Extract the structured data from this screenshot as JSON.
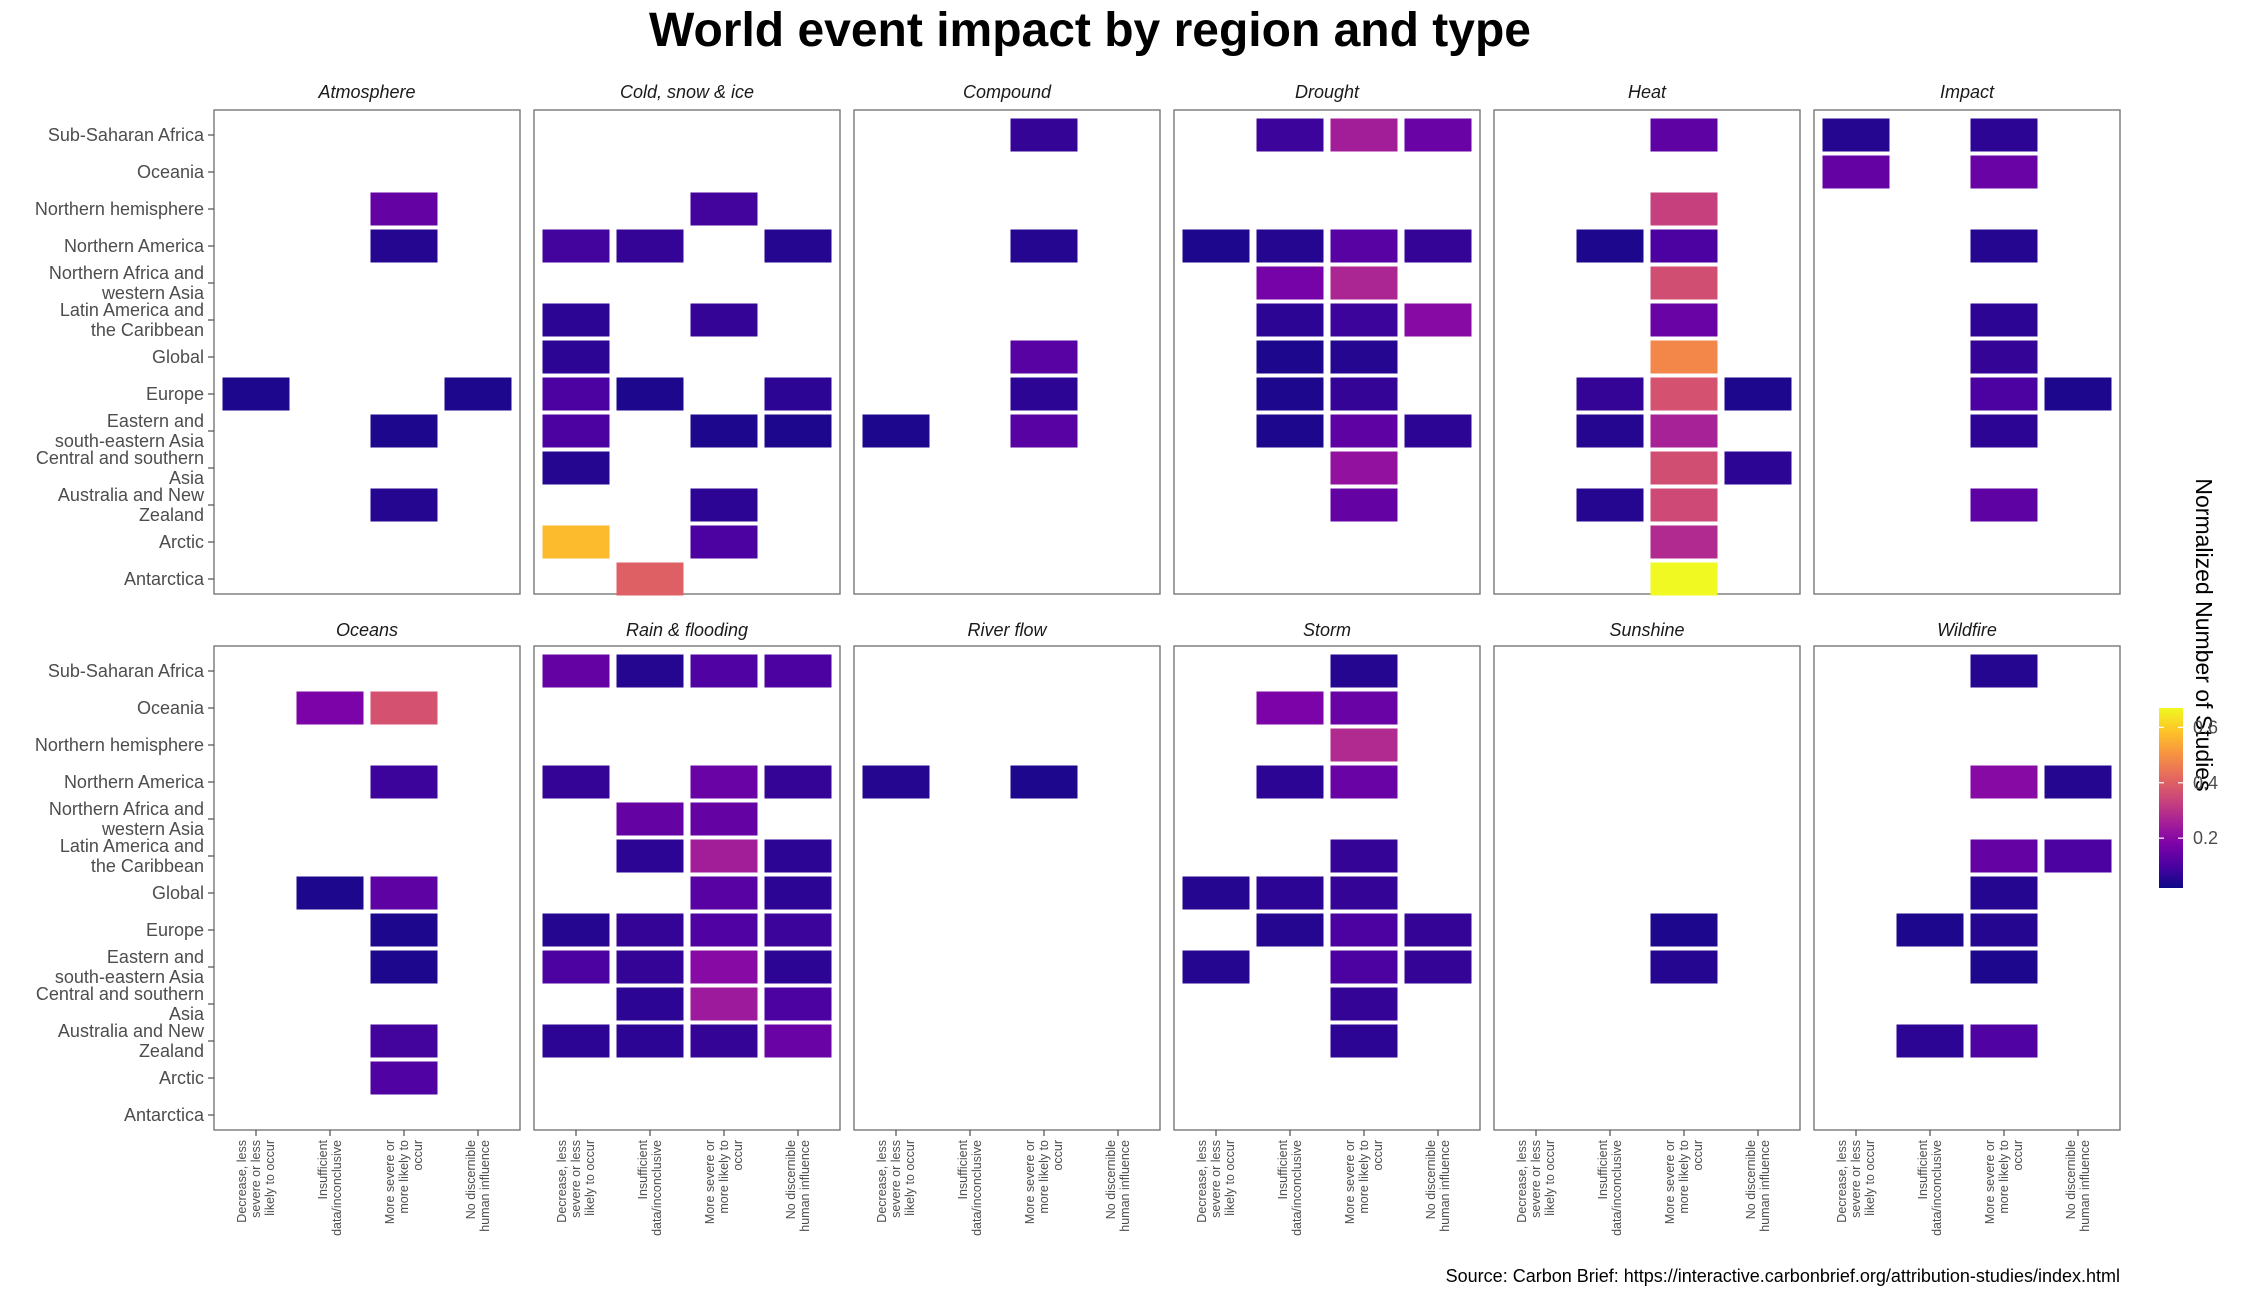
{
  "chart_data": {
    "type": "heatmap",
    "title": "World event impact by region and type",
    "caption": "Source: Carbon Brief: https://interactive.carbonbrief.org/attribution-studies/index.html",
    "legend": {
      "title": "Normalized Number of Studies",
      "ticks": [
        0.2,
        0.4,
        0.6
      ],
      "range": [
        0.02,
        0.67
      ],
      "placement": "right"
    },
    "regions": [
      "Sub-Saharan Africa",
      "Oceania",
      "Northern hemisphere",
      "Northern America",
      "Northern Africa and western Asia",
      "Latin America and the Caribbean",
      "Global",
      "Europe",
      "Eastern and south-eastern Asia",
      "Central and southern Asia",
      "Australia and New Zealand",
      "Arctic",
      "Antarctica"
    ],
    "region_labels": [
      [
        "Sub-Saharan Africa"
      ],
      [
        "Oceania"
      ],
      [
        "Northern hemisphere"
      ],
      [
        "Northern America"
      ],
      [
        "Northern Africa and",
        "western Asia"
      ],
      [
        "Latin America and",
        "the Caribbean"
      ],
      [
        "Global"
      ],
      [
        "Europe"
      ],
      [
        "Eastern and",
        "south-eastern Asia"
      ],
      [
        "Central and southern",
        "Asia"
      ],
      [
        "Australia and New",
        "Zealand"
      ],
      [
        "Arctic"
      ],
      [
        "Antarctica"
      ]
    ],
    "categories": [
      "Decrease, less severe or less likely to occur",
      "Insufficient data/inconclusive",
      "More severe or more likely to occur",
      "No discernible human influence"
    ],
    "category_labels": [
      [
        "Decrease, less",
        "severe or less",
        "likely to occur"
      ],
      [
        "Insufficient",
        "data/inconclusive"
      ],
      [
        "More severe or",
        "more likely to",
        "occur"
      ],
      [
        "No discernible",
        "human influence"
      ]
    ],
    "facets": [
      {
        "name": "Atmosphere",
        "cells": [
          [
            2,
            2,
            0.14
          ],
          [
            3,
            2,
            0.05
          ],
          [
            7,
            0,
            0.04
          ],
          [
            7,
            3,
            0.04
          ],
          [
            8,
            2,
            0.04
          ],
          [
            10,
            2,
            0.05
          ]
        ]
      },
      {
        "name": "Cold, snow & ice",
        "cells": [
          [
            2,
            2,
            0.09
          ],
          [
            3,
            0,
            0.09
          ],
          [
            3,
            1,
            0.07
          ],
          [
            3,
            3,
            0.05
          ],
          [
            5,
            0,
            0.06
          ],
          [
            5,
            2,
            0.07
          ],
          [
            6,
            0,
            0.06
          ],
          [
            7,
            0,
            0.1
          ],
          [
            7,
            1,
            0.04
          ],
          [
            7,
            3,
            0.06
          ],
          [
            8,
            0,
            0.1
          ],
          [
            8,
            2,
            0.04
          ],
          [
            8,
            3,
            0.04
          ],
          [
            9,
            0,
            0.05
          ],
          [
            10,
            2,
            0.06
          ],
          [
            11,
            0,
            0.57
          ],
          [
            11,
            2,
            0.1
          ],
          [
            12,
            1,
            0.4
          ]
        ]
      },
      {
        "name": "Compound",
        "cells": [
          [
            0,
            2,
            0.07
          ],
          [
            3,
            2,
            0.05
          ],
          [
            6,
            2,
            0.12
          ],
          [
            7,
            2,
            0.06
          ],
          [
            8,
            0,
            0.04
          ],
          [
            8,
            2,
            0.12
          ]
        ]
      },
      {
        "name": "Drought",
        "cells": [
          [
            0,
            1,
            0.08
          ],
          [
            0,
            2,
            0.25
          ],
          [
            0,
            3,
            0.15
          ],
          [
            3,
            0,
            0.04
          ],
          [
            3,
            1,
            0.05
          ],
          [
            3,
            2,
            0.12
          ],
          [
            3,
            3,
            0.07
          ],
          [
            4,
            1,
            0.17
          ],
          [
            4,
            2,
            0.27
          ],
          [
            5,
            1,
            0.06
          ],
          [
            5,
            2,
            0.08
          ],
          [
            5,
            3,
            0.2
          ],
          [
            6,
            1,
            0.04
          ],
          [
            6,
            2,
            0.05
          ],
          [
            7,
            1,
            0.04
          ],
          [
            7,
            2,
            0.07
          ],
          [
            8,
            1,
            0.04
          ],
          [
            8,
            2,
            0.13
          ],
          [
            8,
            3,
            0.06
          ],
          [
            9,
            2,
            0.22
          ],
          [
            10,
            2,
            0.14
          ]
        ]
      },
      {
        "name": "Heat",
        "cells": [
          [
            0,
            2,
            0.13
          ],
          [
            2,
            2,
            0.33
          ],
          [
            3,
            1,
            0.04
          ],
          [
            3,
            2,
            0.1
          ],
          [
            4,
            2,
            0.36
          ],
          [
            5,
            2,
            0.15
          ],
          [
            6,
            2,
            0.48
          ],
          [
            7,
            1,
            0.07
          ],
          [
            7,
            2,
            0.37
          ],
          [
            7,
            3,
            0.04
          ],
          [
            8,
            1,
            0.05
          ],
          [
            8,
            2,
            0.26
          ],
          [
            9,
            2,
            0.36
          ],
          [
            9,
            3,
            0.06
          ],
          [
            10,
            1,
            0.05
          ],
          [
            10,
            2,
            0.35
          ],
          [
            11,
            2,
            0.28
          ],
          [
            12,
            2,
            0.67
          ]
        ]
      },
      {
        "name": "Impact",
        "cells": [
          [
            0,
            0,
            0.05
          ],
          [
            0,
            2,
            0.06
          ],
          [
            1,
            0,
            0.14
          ],
          [
            1,
            2,
            0.15
          ],
          [
            3,
            2,
            0.05
          ],
          [
            5,
            2,
            0.06
          ],
          [
            6,
            2,
            0.07
          ],
          [
            7,
            2,
            0.1
          ],
          [
            7,
            3,
            0.04
          ],
          [
            8,
            2,
            0.06
          ],
          [
            10,
            2,
            0.13
          ]
        ]
      },
      {
        "name": "Oceans",
        "cells": [
          [
            1,
            1,
            0.18
          ],
          [
            1,
            2,
            0.37
          ],
          [
            3,
            2,
            0.08
          ],
          [
            6,
            1,
            0.04
          ],
          [
            6,
            2,
            0.13
          ],
          [
            7,
            2,
            0.04
          ],
          [
            8,
            2,
            0.04
          ],
          [
            10,
            2,
            0.09
          ],
          [
            11,
            2,
            0.11
          ]
        ]
      },
      {
        "name": "Rain & flooding",
        "cells": [
          [
            0,
            0,
            0.14
          ],
          [
            0,
            1,
            0.05
          ],
          [
            0,
            2,
            0.11
          ],
          [
            0,
            3,
            0.1
          ],
          [
            3,
            0,
            0.07
          ],
          [
            3,
            2,
            0.15
          ],
          [
            3,
            3,
            0.07
          ],
          [
            4,
            1,
            0.14
          ],
          [
            4,
            2,
            0.14
          ],
          [
            5,
            1,
            0.06
          ],
          [
            5,
            2,
            0.25
          ],
          [
            5,
            3,
            0.06
          ],
          [
            6,
            2,
            0.12
          ],
          [
            6,
            3,
            0.06
          ],
          [
            7,
            0,
            0.05
          ],
          [
            7,
            1,
            0.07
          ],
          [
            7,
            2,
            0.11
          ],
          [
            7,
            3,
            0.08
          ],
          [
            8,
            0,
            0.1
          ],
          [
            8,
            1,
            0.07
          ],
          [
            8,
            2,
            0.2
          ],
          [
            8,
            3,
            0.06
          ],
          [
            9,
            1,
            0.06
          ],
          [
            9,
            2,
            0.24
          ],
          [
            9,
            3,
            0.1
          ],
          [
            10,
            0,
            0.06
          ],
          [
            10,
            1,
            0.06
          ],
          [
            10,
            2,
            0.07
          ],
          [
            10,
            3,
            0.15
          ]
        ]
      },
      {
        "name": "River flow",
        "cells": [
          [
            3,
            0,
            0.05
          ],
          [
            3,
            2,
            0.04
          ]
        ]
      },
      {
        "name": "Storm",
        "cells": [
          [
            0,
            2,
            0.05
          ],
          [
            1,
            1,
            0.18
          ],
          [
            1,
            2,
            0.15
          ],
          [
            2,
            2,
            0.28
          ],
          [
            3,
            1,
            0.06
          ],
          [
            3,
            2,
            0.15
          ],
          [
            5,
            2,
            0.07
          ],
          [
            6,
            0,
            0.05
          ],
          [
            6,
            1,
            0.06
          ],
          [
            6,
            2,
            0.07
          ],
          [
            7,
            1,
            0.05
          ],
          [
            7,
            2,
            0.1
          ],
          [
            7,
            3,
            0.07
          ],
          [
            8,
            0,
            0.05
          ],
          [
            8,
            2,
            0.1
          ],
          [
            8,
            3,
            0.07
          ],
          [
            9,
            2,
            0.07
          ],
          [
            10,
            2,
            0.06
          ]
        ]
      },
      {
        "name": "Sunshine",
        "cells": [
          [
            7,
            2,
            0.04
          ],
          [
            8,
            2,
            0.05
          ]
        ]
      },
      {
        "name": "Wildfire",
        "cells": [
          [
            0,
            2,
            0.05
          ],
          [
            3,
            2,
            0.2
          ],
          [
            3,
            3,
            0.05
          ],
          [
            5,
            2,
            0.14
          ],
          [
            5,
            3,
            0.1
          ],
          [
            6,
            2,
            0.05
          ],
          [
            7,
            1,
            0.04
          ],
          [
            7,
            2,
            0.05
          ],
          [
            8,
            2,
            0.04
          ],
          [
            10,
            1,
            0.06
          ],
          [
            10,
            2,
            0.11
          ]
        ]
      }
    ]
  }
}
